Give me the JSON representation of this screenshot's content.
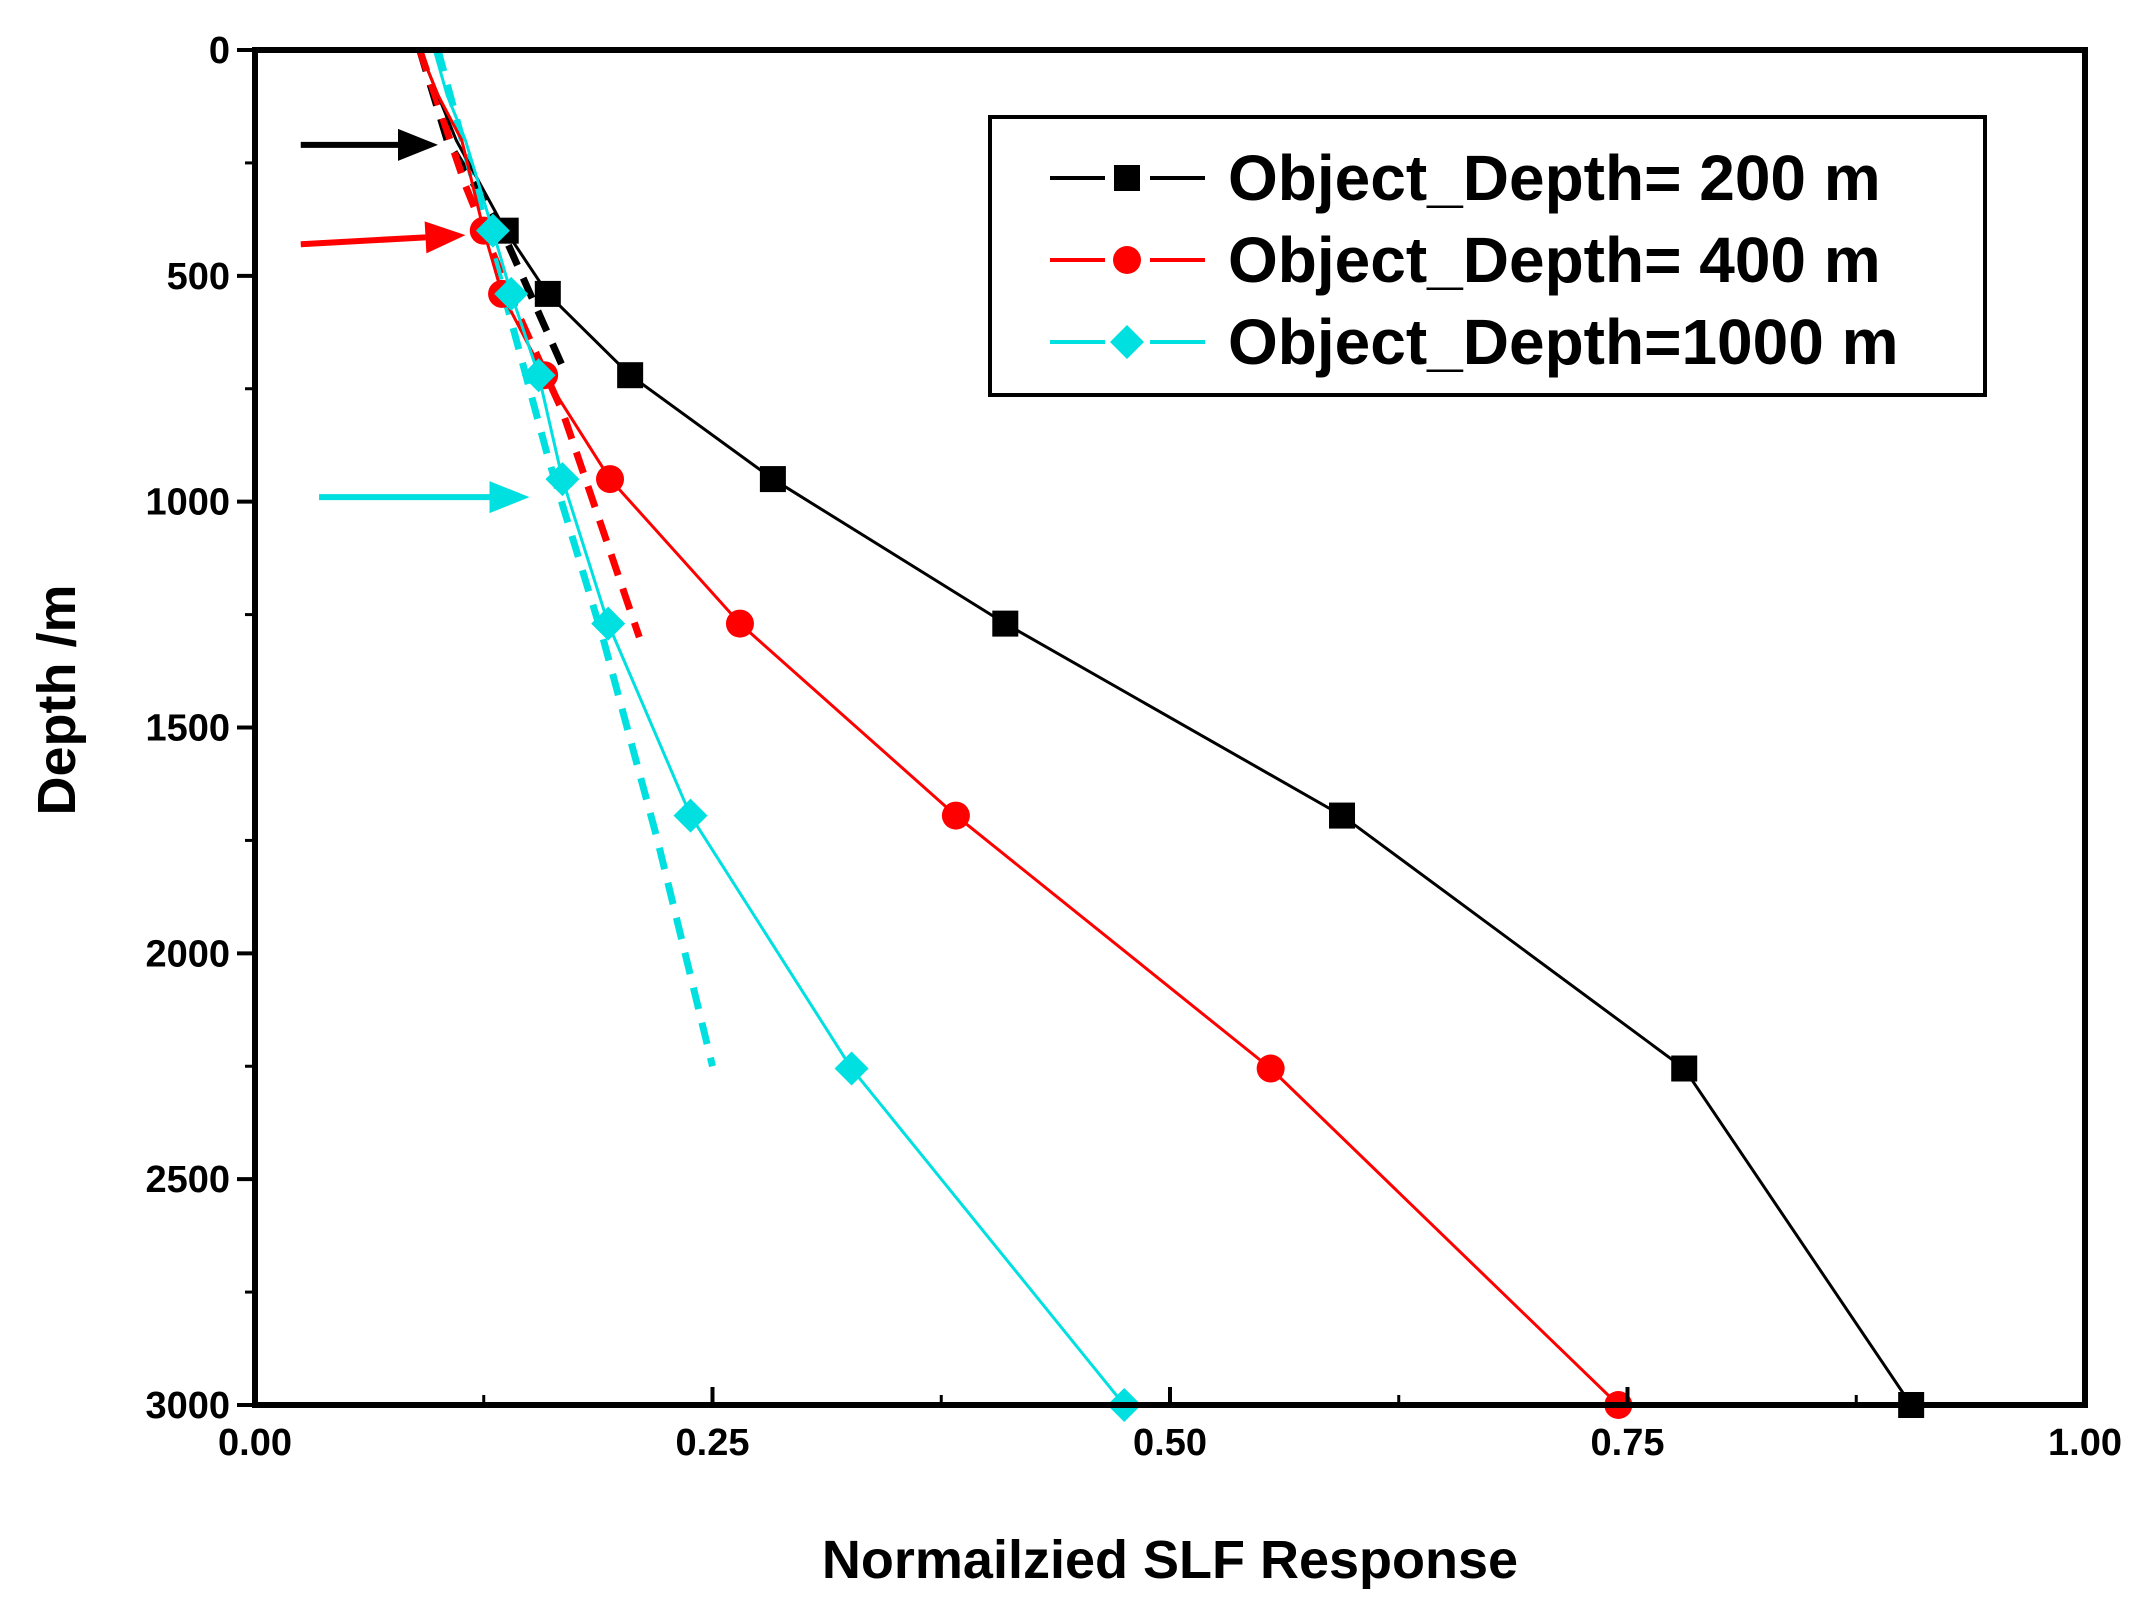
{
  "chart_data": {
    "type": "line",
    "title": "",
    "xlabel": "Normailzied SLF Response",
    "ylabel": "Depth /m",
    "xlim": [
      0.0,
      1.0
    ],
    "ylim": [
      0,
      3000
    ],
    "y_inverted": true,
    "x_ticks": [
      "0.00",
      "0.25",
      "0.50",
      "0.75",
      "1.00"
    ],
    "y_ticks": [
      "0",
      "500",
      "1000",
      "1500",
      "2000",
      "2500",
      "3000"
    ],
    "x_tick_values": [
      0,
      0.25,
      0.5,
      0.75,
      1.0
    ],
    "y_tick_values": [
      0,
      500,
      1000,
      1500,
      2000,
      2500,
      3000
    ],
    "legend_position": "top-right",
    "series": [
      {
        "name": "Object_Depth=  200 m",
        "color": "#000000",
        "marker": "square",
        "points": [
          [
            0.09,
            0
          ],
          [
            0.1,
            100
          ],
          [
            0.11,
            200
          ],
          [
            0.137,
            400
          ],
          [
            0.16,
            540
          ],
          [
            0.205,
            720
          ],
          [
            0.283,
            950
          ],
          [
            0.41,
            1270
          ],
          [
            0.594,
            1695
          ],
          [
            0.781,
            2255
          ],
          [
            0.905,
            3000
          ]
        ]
      },
      {
        "name": "Object_Depth=  400 m",
        "color": "#ff0000",
        "marker": "circle",
        "points": [
          [
            0.09,
            0
          ],
          [
            0.1,
            100
          ],
          [
            0.113,
            200
          ],
          [
            0.125,
            400
          ],
          [
            0.135,
            540
          ],
          [
            0.158,
            720
          ],
          [
            0.194,
            950
          ],
          [
            0.265,
            1270
          ],
          [
            0.383,
            1695
          ],
          [
            0.555,
            2255
          ],
          [
            0.745,
            3000
          ]
        ]
      },
      {
        "name": "Object_Depth=1000 m",
        "color": "#00e0e0",
        "marker": "diamond",
        "points": [
          [
            0.098,
            0
          ],
          [
            0.105,
            100
          ],
          [
            0.115,
            200
          ],
          [
            0.13,
            400
          ],
          [
            0.14,
            540
          ],
          [
            0.155,
            720
          ],
          [
            0.168,
            950
          ],
          [
            0.193,
            1270
          ],
          [
            0.238,
            1695
          ],
          [
            0.326,
            2255
          ],
          [
            0.475,
            3000
          ]
        ]
      }
    ],
    "dashed_lines": [
      {
        "color": "#000000",
        "points": [
          [
            0.09,
            0
          ],
          [
            0.105,
            200
          ],
          [
            0.135,
            400
          ],
          [
            0.168,
            700
          ]
        ]
      },
      {
        "color": "#ff0000",
        "points": [
          [
            0.09,
            0
          ],
          [
            0.115,
            300
          ],
          [
            0.14,
            550
          ],
          [
            0.168,
            800
          ],
          [
            0.21,
            1300
          ]
        ]
      },
      {
        "color": "#00e0e0",
        "points": [
          [
            0.1,
            0
          ],
          [
            0.12,
            300
          ],
          [
            0.14,
            600
          ],
          [
            0.16,
            900
          ],
          [
            0.19,
            1300
          ],
          [
            0.22,
            1750
          ],
          [
            0.25,
            2250
          ]
        ]
      }
    ],
    "arrows": [
      {
        "color": "#000000",
        "from": [
          0.025,
          210
        ],
        "to": [
          0.1,
          210
        ]
      },
      {
        "color": "#ff0000",
        "from": [
          0.025,
          430
        ],
        "to": [
          0.115,
          410
        ]
      },
      {
        "color": "#00e0e0",
        "from": [
          0.035,
          990
        ],
        "to": [
          0.15,
          990
        ]
      }
    ]
  }
}
